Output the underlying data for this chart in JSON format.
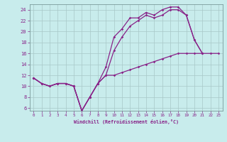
{
  "background_color": "#c8ecec",
  "grid_color": "#a8c8c8",
  "line_color": "#882288",
  "xlim": [
    -0.5,
    23.5
  ],
  "ylim": [
    5.5,
    25.0
  ],
  "xticks": [
    0,
    1,
    2,
    3,
    4,
    5,
    6,
    7,
    8,
    9,
    10,
    11,
    12,
    13,
    14,
    15,
    16,
    17,
    18,
    19,
    20,
    21,
    22,
    23
  ],
  "yticks": [
    6,
    8,
    10,
    12,
    14,
    16,
    18,
    20,
    22,
    24
  ],
  "xlabel": "Windchill (Refroidissement éolien,°C)",
  "line1_x": [
    0,
    1,
    2,
    3,
    4,
    5,
    6,
    7,
    8,
    9,
    10,
    11,
    12,
    13,
    14,
    15,
    16,
    17,
    18,
    19,
    20,
    21
  ],
  "line1_y": [
    11.5,
    10.5,
    10.0,
    10.5,
    10.5,
    10.0,
    5.5,
    8.0,
    10.5,
    13.5,
    19.0,
    20.5,
    22.5,
    22.5,
    23.5,
    23.0,
    24.0,
    24.5,
    24.5,
    23.0,
    18.5,
    16.0
  ],
  "line2_x": [
    0,
    1,
    2,
    3,
    4,
    5,
    6,
    7,
    8,
    9,
    10,
    11,
    12,
    13,
    14,
    15,
    16,
    17,
    18,
    19,
    20,
    21
  ],
  "line2_y": [
    11.5,
    10.5,
    10.0,
    10.5,
    10.5,
    10.0,
    5.5,
    8.0,
    10.5,
    12.0,
    16.5,
    19.0,
    21.0,
    22.0,
    23.0,
    22.5,
    23.0,
    24.0,
    24.0,
    23.0,
    18.5,
    16.0
  ],
  "line3_x": [
    0,
    1,
    2,
    3,
    4,
    5,
    6,
    7,
    8,
    9,
    10,
    11,
    12,
    13,
    14,
    15,
    16,
    17,
    18,
    19,
    20,
    21,
    22,
    23
  ],
  "line3_y": [
    11.5,
    10.5,
    10.0,
    10.5,
    10.5,
    10.0,
    5.5,
    8.0,
    10.5,
    12.0,
    12.0,
    12.5,
    13.0,
    13.5,
    14.0,
    14.5,
    15.0,
    15.5,
    16.0,
    16.0,
    16.0,
    16.0,
    16.0,
    16.0
  ]
}
